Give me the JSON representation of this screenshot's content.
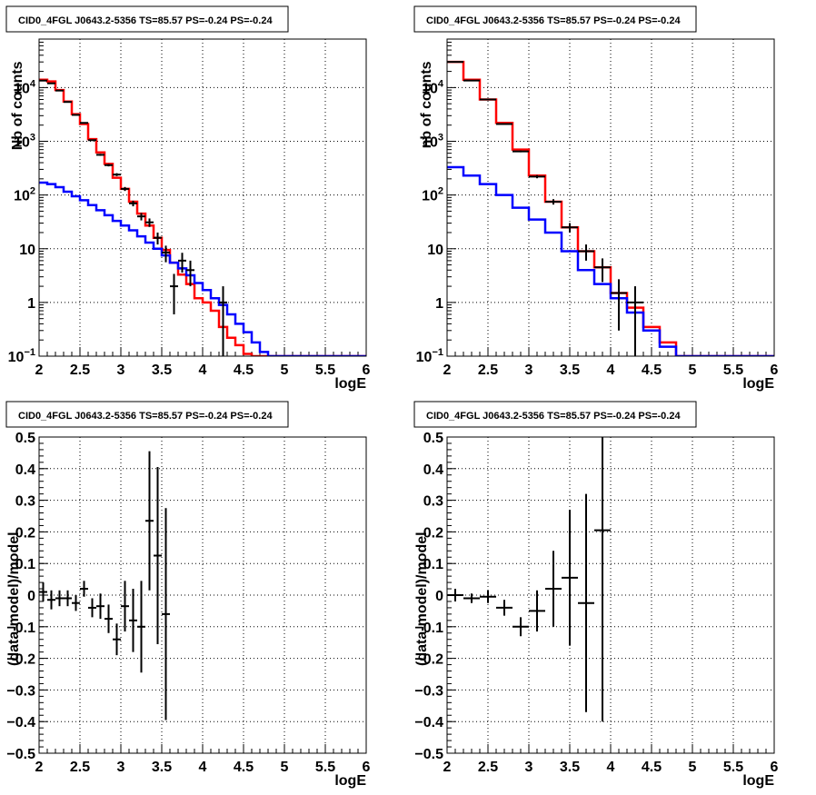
{
  "chart_data": [
    {
      "id": "top-left",
      "type": "line",
      "title": "CID0_4FGL J0643.2-5356 TS=85.57 PS=-0.24 PS=-0.24",
      "xlabel": "logE",
      "ylabel": "Nb of counts",
      "xlim": [
        2,
        6
      ],
      "ylim": [
        0.1,
        80000
      ],
      "yscale": "log",
      "grid": true,
      "x_ticks": [
        "2",
        "2.5",
        "3",
        "3.5",
        "4",
        "4.5",
        "5",
        "5.5",
        "6"
      ],
      "y_ticks": [
        {
          "value": 0.1,
          "label": "10",
          "exp": "−1"
        },
        {
          "value": 1,
          "label": "1",
          "exp": ""
        },
        {
          "value": 10,
          "label": "10",
          "exp": ""
        },
        {
          "value": 100,
          "label": "10",
          "exp": "2"
        },
        {
          "value": 1000,
          "label": "10",
          "exp": "3"
        },
        {
          "value": 10000,
          "label": "10",
          "exp": "4"
        }
      ],
      "bin_edges": [
        2.0,
        2.1,
        2.2,
        2.3,
        2.4,
        2.5,
        2.6,
        2.7,
        2.8,
        2.9,
        3.0,
        3.1,
        3.2,
        3.3,
        3.4,
        3.5,
        3.6,
        3.7,
        3.8,
        3.9,
        4.0,
        4.1,
        4.2,
        4.3,
        4.4,
        4.5,
        4.6,
        4.7,
        4.8,
        4.9,
        5.0,
        5.1,
        5.2,
        5.3,
        5.4,
        5.5,
        5.6,
        5.7,
        5.8,
        5.9,
        6.0
      ],
      "series": [
        {
          "name": "",
          "color": "#ff0000",
          "style": "step",
          "values": [
            14000,
            13000,
            9000,
            5500,
            3200,
            2100,
            1100,
            620,
            380,
            210,
            130,
            75,
            45,
            27,
            16,
            9.5,
            5.5,
            3.3,
            2.2,
            1.2,
            1.0,
            0.7,
            0.35,
            0.22,
            0.16,
            0.11,
            0.1,
            0.1,
            0.1,
            0.1,
            0.1,
            0.1,
            0.1,
            0.1,
            0.1,
            0.1,
            0.1,
            0.1,
            0.1,
            0.1
          ]
        },
        {
          "name": "",
          "color": "#0000ff",
          "style": "step",
          "values": [
            170,
            160,
            140,
            115,
            95,
            80,
            65,
            52,
            42,
            33,
            27,
            22,
            17,
            13,
            10,
            7.5,
            5.5,
            4.3,
            3.2,
            2.3,
            1.7,
            1.2,
            0.9,
            0.6,
            0.4,
            0.28,
            0.18,
            0.12,
            0.1,
            0.1,
            0.1,
            0.1,
            0.1,
            0.1,
            0.1,
            0.1,
            0.1,
            0.1,
            0.1,
            0.1
          ]
        },
        {
          "name": "",
          "color": "#000000",
          "style": "points",
          "x": [
            2.05,
            2.15,
            2.25,
            2.35,
            2.45,
            2.55,
            2.65,
            2.75,
            2.85,
            2.95,
            3.05,
            3.15,
            3.25,
            3.35,
            3.45,
            3.55,
            3.65,
            3.75,
            3.85,
            4.25
          ],
          "values": [
            13500,
            12000,
            8800,
            5400,
            3100,
            2200,
            1050,
            560,
            360,
            240,
            130,
            70,
            40,
            31,
            16,
            8.5,
            2,
            6,
            4,
            1
          ],
          "err_lo": [
            120,
            110,
            94,
            73,
            56,
            47,
            32,
            24,
            19,
            15,
            11,
            8.4,
            6.3,
            5.6,
            4,
            2.9,
            1.4,
            2.4,
            2,
            1
          ],
          "err_hi": [
            120,
            110,
            94,
            73,
            56,
            47,
            32,
            24,
            19,
            15,
            11,
            8.4,
            6.3,
            5.6,
            4,
            2.9,
            1.4,
            2.4,
            2,
            1
          ]
        }
      ]
    },
    {
      "id": "top-right",
      "type": "line",
      "title": "CID0_4FGL J0643.2-5356 TS=85.57 PS=-0.24 PS=-0.24",
      "xlabel": "logE",
      "ylabel": "nb of counts",
      "xlim": [
        2,
        6
      ],
      "ylim": [
        0.1,
        80000
      ],
      "yscale": "log",
      "grid": true,
      "x_ticks": [
        "2",
        "2.5",
        "3",
        "3.5",
        "4",
        "4.5",
        "5",
        "5.5",
        "6"
      ],
      "y_ticks": [
        {
          "value": 0.1,
          "label": "10",
          "exp": "−1"
        },
        {
          "value": 1,
          "label": "1",
          "exp": ""
        },
        {
          "value": 10,
          "label": "10",
          "exp": ""
        },
        {
          "value": 100,
          "label": "10",
          "exp": "2"
        },
        {
          "value": 1000,
          "label": "10",
          "exp": "3"
        },
        {
          "value": 10000,
          "label": "10",
          "exp": "4"
        }
      ],
      "bin_edges": [
        2.0,
        2.2,
        2.4,
        2.6,
        2.8,
        3.0,
        3.2,
        3.4,
        3.6,
        3.8,
        4.0,
        4.2,
        4.4,
        4.6,
        4.8,
        5.0,
        5.2,
        5.4,
        5.6,
        5.8,
        6.0
      ],
      "series": [
        {
          "name": "",
          "color": "#ff0000",
          "style": "step",
          "values": [
            30000,
            14000,
            6000,
            2200,
            700,
            230,
            75,
            25,
            9,
            4.5,
            1.5,
            0.8,
            0.35,
            0.18,
            0.1,
            0.1,
            0.1,
            0.1,
            0.1,
            0.1
          ]
        },
        {
          "name": "",
          "color": "#0000ff",
          "style": "step",
          "values": [
            330,
            230,
            160,
            100,
            58,
            35,
            20,
            9,
            4,
            2.2,
            1.2,
            0.65,
            0.3,
            0.15,
            0.1,
            0.1,
            0.1,
            0.1,
            0.1,
            0.1
          ]
        },
        {
          "name": "",
          "color": "#000000",
          "style": "points",
          "x": [
            2.1,
            2.3,
            2.5,
            2.7,
            2.9,
            3.1,
            3.3,
            3.5,
            3.7,
            3.9,
            4.1,
            4.3
          ],
          "values": [
            30000,
            13500,
            6000,
            2100,
            650,
            220,
            75,
            25,
            9,
            4.5,
            1.5,
            1
          ],
          "err_lo": [
            170,
            116,
            77,
            46,
            25,
            15,
            8.7,
            5,
            3,
            2.1,
            1.2,
            1
          ],
          "err_hi": [
            170,
            116,
            77,
            46,
            25,
            15,
            8.7,
            5,
            3,
            2.1,
            1.2,
            1
          ]
        }
      ]
    },
    {
      "id": "bottom-left",
      "type": "scatter",
      "title": "CID0_4FGL J0643.2-5356 TS=85.57 PS=-0.24 PS=-0.24",
      "xlabel": "logE",
      "ylabel": "(data-model)/model",
      "xlim": [
        2,
        6
      ],
      "ylim": [
        -0.5,
        0.5
      ],
      "yscale": "linear",
      "grid": true,
      "x_ticks": [
        "2",
        "2.5",
        "3",
        "3.5",
        "4",
        "4.5",
        "5",
        "5.5",
        "6"
      ],
      "y_ticks": [
        {
          "value": -0.5,
          "label": "−0.5",
          "exp": ""
        },
        {
          "value": -0.4,
          "label": "−0.4",
          "exp": ""
        },
        {
          "value": -0.3,
          "label": "−0.3",
          "exp": ""
        },
        {
          "value": -0.2,
          "label": "−0.2",
          "exp": ""
        },
        {
          "value": -0.1,
          "label": "−0.1",
          "exp": ""
        },
        {
          "value": 0,
          "label": "0",
          "exp": ""
        },
        {
          "value": 0.1,
          "label": "0.1",
          "exp": ""
        },
        {
          "value": 0.2,
          "label": "0.2",
          "exp": ""
        },
        {
          "value": 0.3,
          "label": "0.3",
          "exp": ""
        },
        {
          "value": 0.4,
          "label": "0.4",
          "exp": ""
        },
        {
          "value": 0.5,
          "label": "0.5",
          "exp": ""
        }
      ],
      "series": [
        {
          "name": "",
          "color": "#000000",
          "style": "points",
          "xhalf": 0.05,
          "x": [
            2.05,
            2.15,
            2.25,
            2.35,
            2.45,
            2.55,
            2.65,
            2.75,
            2.85,
            2.95,
            3.05,
            3.15,
            3.25,
            3.35,
            3.45,
            3.55
          ],
          "values": [
            0.01,
            -0.015,
            -0.01,
            -0.01,
            -0.025,
            0.02,
            -0.04,
            -0.035,
            -0.075,
            -0.14,
            -0.035,
            -0.08,
            -0.1,
            0.235,
            0.125,
            -0.06
          ],
          "err_lo": [
            0.03,
            0.03,
            0.025,
            0.025,
            0.025,
            0.025,
            0.03,
            0.04,
            0.045,
            0.05,
            0.08,
            0.1,
            0.145,
            0.22,
            0.28,
            0.335
          ],
          "err_hi": [
            0.03,
            0.03,
            0.025,
            0.025,
            0.025,
            0.025,
            0.03,
            0.04,
            0.045,
            0.05,
            0.08,
            0.1,
            0.145,
            0.22,
            0.28,
            0.335
          ]
        }
      ]
    },
    {
      "id": "bottom-right",
      "type": "scatter",
      "title": "CID0_4FGL J0643.2-5356 TS=85.57 PS=-0.24 PS=-0.24",
      "xlabel": "logE",
      "ylabel": "(data-model)/model",
      "xlim": [
        2,
        6
      ],
      "ylim": [
        -0.5,
        0.5
      ],
      "yscale": "linear",
      "grid": true,
      "x_ticks": [
        "2",
        "2.5",
        "3",
        "3.5",
        "4",
        "4.5",
        "5",
        "5.5",
        "6"
      ],
      "y_ticks": [
        {
          "value": -0.5,
          "label": "−0.5",
          "exp": ""
        },
        {
          "value": -0.4,
          "label": "−0.4",
          "exp": ""
        },
        {
          "value": -0.3,
          "label": "−0.3",
          "exp": ""
        },
        {
          "value": -0.2,
          "label": "−0.2",
          "exp": ""
        },
        {
          "value": -0.1,
          "label": "−0.1",
          "exp": ""
        },
        {
          "value": 0,
          "label": "0",
          "exp": ""
        },
        {
          "value": 0.1,
          "label": "0.1",
          "exp": ""
        },
        {
          "value": 0.2,
          "label": "0.2",
          "exp": ""
        },
        {
          "value": 0.3,
          "label": "0.3",
          "exp": ""
        },
        {
          "value": 0.4,
          "label": "0.4",
          "exp": ""
        },
        {
          "value": 0.5,
          "label": "0.5",
          "exp": ""
        }
      ],
      "series": [
        {
          "name": "",
          "color": "#000000",
          "style": "points",
          "xhalf": 0.1,
          "x": [
            2.1,
            2.3,
            2.5,
            2.7,
            2.9,
            3.1,
            3.3,
            3.5,
            3.7,
            3.9
          ],
          "values": [
            0.0,
            -0.01,
            -0.005,
            -0.04,
            -0.1,
            -0.05,
            0.02,
            0.055,
            -0.025,
            0.205
          ],
          "err_lo": [
            0.02,
            0.015,
            0.02,
            0.025,
            0.03,
            0.065,
            0.12,
            0.215,
            0.345,
            0.605
          ],
          "err_hi": [
            0.02,
            0.015,
            0.02,
            0.025,
            0.03,
            0.065,
            0.12,
            0.215,
            0.345,
            0.605
          ]
        }
      ]
    }
  ]
}
